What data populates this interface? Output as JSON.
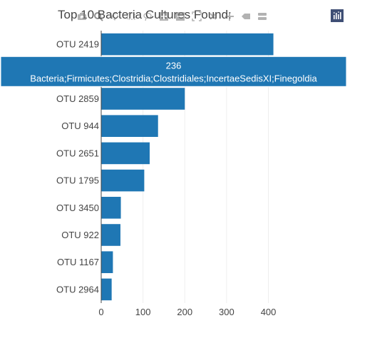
{
  "chart_data": {
    "type": "bar",
    "orientation": "horizontal",
    "title": "Top 10 Bacteria Cultures Found:",
    "categories": [
      "OTU 2419",
      "OTU 2964",
      "OTU 2859",
      "OTU 944",
      "OTU 2651",
      "OTU 1795",
      "OTU 3450",
      "OTU 922",
      "OTU 1167",
      "OTU 2964"
    ],
    "values": [
      412,
      236,
      200,
      136,
      116,
      103,
      47,
      46,
      28,
      25
    ],
    "xlim": [
      0,
      440
    ],
    "xticks": [
      0,
      100,
      200,
      300,
      400
    ],
    "grid": true,
    "color": "#1f77b4",
    "hover": {
      "category_index": 1,
      "value_label": "236",
      "text": "Bacteria;Firmicutes;Clostridia;Clostridiales;IncertaeSedisXI;Finegoldia"
    }
  },
  "modebar": {
    "icons": [
      "camera-icon",
      "zoom-icon",
      "pan-icon",
      "box-select-icon",
      "lasso-icon",
      "zoom-in-icon",
      "zoom-out-icon",
      "autoscale-icon",
      "reset-axes-icon",
      "spike-lines-icon",
      "hover-closest-icon",
      "hover-compare-icon",
      "plotly-logo-icon"
    ]
  }
}
